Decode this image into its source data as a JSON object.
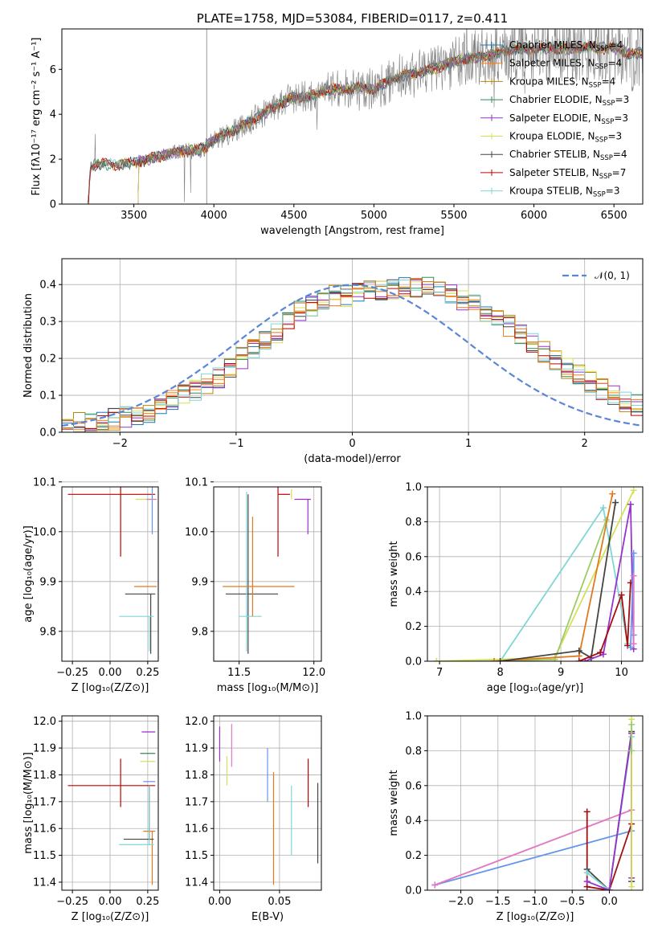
{
  "title": "PLATE=1758, MJD=53084, FIBERID=0117, z=0.411",
  "colors": {
    "chabrier_miles": "#1f77b4",
    "salpeter_miles": "#ff7f0e",
    "kroupa_miles": "#b8860b",
    "chabrier_elodie": "#2e8b57",
    "salpeter_elodie": "#9932cc",
    "kroupa_elodie": "#d4e157",
    "chabrier_stelib": "#444444",
    "salpeter_stelib": "#c00000",
    "kroupa_stelib": "#7fd6d6",
    "data": "#808080",
    "normal": "#5b86d6",
    "pink": "#e377c2",
    "green2": "#9ccc65",
    "blue2": "#6495ed",
    "orange2": "#e07a20",
    "darkred": "#a01010"
  },
  "chart_data": [
    {
      "type": "line",
      "id": "spectrum",
      "title": "PLATE=1758, MJD=53084, FIBERID=0117, z=0.411",
      "xlabel": "wavelength [Angstrom, rest frame]",
      "ylabel": "Flux [fλ10⁻¹⁷ erg cm⁻² s⁻¹ A⁻¹]",
      "xlim": [
        3050,
        6680
      ],
      "ylim": [
        0,
        7.8
      ],
      "xticks": [
        3500,
        4000,
        4500,
        5000,
        5500,
        6000,
        6500
      ],
      "yticks": [
        0,
        2,
        4,
        6
      ],
      "grid": false,
      "legend_position": "top-right",
      "legend": [
        {
          "label": "Chabrier MILES, N",
          "sub": "SSP",
          "suffix": "=4",
          "color_key": "chabrier_miles"
        },
        {
          "label": "Salpeter MILES, N",
          "sub": "SSP",
          "suffix": "=4",
          "color_key": "salpeter_miles"
        },
        {
          "label": "Kroupa MILES, N",
          "sub": "SSP",
          "suffix": "=4",
          "color_key": "kroupa_miles"
        },
        {
          "label": "Chabrier ELODIE, N",
          "sub": "SSP",
          "suffix": "=3",
          "color_key": "chabrier_elodie"
        },
        {
          "label": "Salpeter ELODIE, N",
          "sub": "SSP",
          "suffix": "=3",
          "color_key": "salpeter_elodie"
        },
        {
          "label": "Kroupa ELODIE, N",
          "sub": "SSP",
          "suffix": "=3",
          "color_key": "kroupa_elodie"
        },
        {
          "label": "Chabrier STELIB, N",
          "sub": "SSP",
          "suffix": "=4",
          "color_key": "chabrier_stelib"
        },
        {
          "label": "Salpeter STELIB, N",
          "sub": "SSP",
          "suffix": "=7",
          "color_key": "salpeter_stelib"
        },
        {
          "label": "Kroupa STELIB, N",
          "sub": "SSP",
          "suffix": "=3",
          "color_key": "kroupa_stelib"
        }
      ],
      "continuum": {
        "x": [
          3210,
          3230,
          3300,
          3400,
          3500,
          3600,
          3700,
          3800,
          3900,
          3950,
          4000,
          4100,
          4200,
          4300,
          4400,
          4500,
          4600,
          4700,
          4800,
          4900,
          5000,
          5100,
          5200,
          5300,
          5400,
          5500,
          5600,
          5700,
          5800,
          5900,
          6000,
          6100,
          6200,
          6300,
          6400,
          6500,
          6600,
          6680
        ],
        "y": [
          0,
          1.7,
          1.8,
          1.75,
          1.85,
          2.0,
          2.2,
          2.35,
          2.4,
          2.5,
          2.85,
          3.2,
          3.55,
          4.0,
          4.4,
          4.75,
          4.8,
          5.1,
          5.1,
          5.2,
          5.1,
          5.5,
          5.75,
          5.9,
          6.1,
          6.35,
          6.5,
          6.6,
          6.8,
          6.9,
          6.9,
          6.95,
          6.9,
          7.0,
          6.95,
          6.95,
          6.7,
          6.7
        ]
      }
    },
    {
      "type": "histogram",
      "id": "residuals",
      "xlabel": "(data-model)/error",
      "ylabel": "Normed distribution",
      "xlim": [
        -2.5,
        2.5
      ],
      "ylim": [
        0,
        0.47
      ],
      "xticks": [
        -2,
        -1,
        0,
        1,
        2
      ],
      "yticks": [
        0.0,
        0.1,
        0.2,
        0.3,
        0.4
      ],
      "grid": true,
      "legend_position": "top-right",
      "legend": [
        {
          "label": "𝒩(0, 1)",
          "color_key": "normal",
          "style": "dashed"
        }
      ],
      "bin_edges_start": -2.5,
      "bin_width": 0.1,
      "envelope": [
        0.02,
        0.025,
        0.03,
        0.03,
        0.035,
        0.04,
        0.045,
        0.055,
        0.07,
        0.085,
        0.1,
        0.115,
        0.13,
        0.15,
        0.175,
        0.2,
        0.225,
        0.25,
        0.27,
        0.3,
        0.325,
        0.34,
        0.36,
        0.37,
        0.37,
        0.375,
        0.38,
        0.38,
        0.385,
        0.39,
        0.39,
        0.39,
        0.385,
        0.37,
        0.36,
        0.345,
        0.33,
        0.31,
        0.29,
        0.27,
        0.245,
        0.22,
        0.195,
        0.175,
        0.155,
        0.135,
        0.115,
        0.1,
        0.085,
        0.075,
        0.06,
        0.05,
        0.045,
        0.035,
        0.03,
        0.025
      ],
      "normal_curve": {
        "mu": 0,
        "sigma": 1
      }
    },
    {
      "type": "errorbar",
      "id": "age_vs_Z",
      "xlabel": "Z [log₁₀(Z/Z⊙)]",
      "ylabel": "age  [log₁₀(age/yr)]",
      "xlim": [
        -0.32,
        0.32
      ],
      "ylim": [
        9.74,
        10.09
      ],
      "xticks": [
        -0.25,
        0.0,
        0.25
      ],
      "xticklabels": [
        "−0.25",
        "0.00",
        "0.25"
      ],
      "yticks": [
        9.8,
        9.9,
        10.0,
        10.1
      ],
      "grid": true,
      "points": [
        {
          "x": 0.07,
          "y": 10.075,
          "xerr": [
            0.35,
            0.23
          ],
          "yerr": [
            0.125,
            0.015
          ],
          "color_key": "salpeter_stelib"
        },
        {
          "x": 0.27,
          "y": 10.065,
          "xerr": [
            0.1,
            0.03
          ],
          "yerr": [
            0.0,
            0.0
          ],
          "color_key": "kroupa_elodie"
        },
        {
          "x": 0.28,
          "y": 10.095,
          "xerr": [
            0.08,
            0.02
          ],
          "yerr": [
            0.1,
            0.0
          ],
          "color_key": "blue2"
        },
        {
          "x": 0.29,
          "y": 10.065,
          "xerr": [
            0.05,
            0.02
          ],
          "yerr": [
            0.0,
            0.0
          ],
          "color_key": "pink"
        },
        {
          "x": 0.27,
          "y": 9.875,
          "xerr": [
            0.17,
            0.03
          ],
          "yerr": [
            0.12,
            0.0
          ],
          "color_key": "chabrier_stelib"
        },
        {
          "x": 0.26,
          "y": 9.83,
          "xerr": [
            0.2,
            0.03
          ],
          "yerr": [
            0.07,
            0.0
          ],
          "color_key": "kroupa_stelib"
        },
        {
          "x": 0.28,
          "y": 9.89,
          "xerr": [
            0.12,
            0.03
          ],
          "yerr": [
            0.0,
            0.0
          ],
          "color_key": "orange2"
        }
      ]
    },
    {
      "type": "errorbar",
      "id": "age_vs_mass",
      "xlabel": "mass [log₁₀(M/M⊙)]",
      "ylabel": "",
      "xlim": [
        11.33,
        12.05
      ],
      "ylim": [
        9.74,
        10.09
      ],
      "xticks": [
        11.5,
        12.0
      ],
      "yticks": [
        9.8,
        9.9,
        10.0,
        10.1
      ],
      "grid": true,
      "points": [
        {
          "x": 11.76,
          "y": 10.075,
          "xerr": [
            0.0,
            0.08
          ],
          "yerr": [
            0.125,
            0.015
          ],
          "color_key": "salpeter_stelib"
        },
        {
          "x": 11.85,
          "y": 10.065,
          "xerr": [
            0.0,
            0.0
          ],
          "yerr": [
            0.0,
            0.02
          ],
          "color_key": "kroupa_elodie"
        },
        {
          "x": 11.77,
          "y": 10.095,
          "xerr": [
            0.1,
            0.1
          ],
          "yerr": [
            0.0,
            0.0
          ],
          "color_key": "blue2"
        },
        {
          "x": 11.96,
          "y": 10.065,
          "xerr": [
            0.09,
            0.02
          ],
          "yerr": [
            0.07,
            0.0
          ],
          "color_key": "salpeter_elodie"
        },
        {
          "x": 11.56,
          "y": 9.875,
          "xerr": [
            0.15,
            0.2
          ],
          "yerr": [
            0.12,
            0.2
          ],
          "color_key": "chabrier_stelib"
        },
        {
          "x": 11.55,
          "y": 9.83,
          "xerr": [
            0.05,
            0.1
          ],
          "yerr": [
            0.07,
            0.25
          ],
          "color_key": "kroupa_stelib"
        },
        {
          "x": 11.59,
          "y": 9.89,
          "xerr": [
            0.2,
            0.28
          ],
          "yerr": [
            0.06,
            0.14
          ],
          "color_key": "orange2"
        }
      ]
    },
    {
      "type": "line",
      "id": "weight_vs_age",
      "xlabel": "age  [log₁₀(age/yr)]",
      "ylabel": "mass weight",
      "xlim": [
        6.8,
        10.35
      ],
      "ylim": [
        0,
        1.0
      ],
      "xticks": [
        7,
        8,
        9,
        10
      ],
      "yticks": [
        0.0,
        0.2,
        0.4,
        0.6,
        0.8,
        1.0
      ],
      "grid": true,
      "series": [
        {
          "color_key": "kroupa_stelib",
          "x": [
            6.95,
            8.0,
            9.7,
            10.1
          ],
          "y": [
            0.0,
            0.0,
            0.88,
            0.1
          ]
        },
        {
          "color_key": "kroupa_elodie",
          "x": [
            6.95,
            8.9,
            10.2
          ],
          "y": [
            0.0,
            0.02,
            0.98
          ]
        },
        {
          "color_key": "green2",
          "x": [
            7.9,
            8.9,
            9.75
          ],
          "y": [
            0.0,
            0.01,
            0.81
          ]
        },
        {
          "color_key": "orange2",
          "x": [
            7.9,
            9.3,
            9.85
          ],
          "y": [
            0.0,
            0.03,
            0.96
          ]
        },
        {
          "color_key": "chabrier_stelib",
          "x": [
            8.0,
            9.3,
            9.5,
            9.9
          ],
          "y": [
            0.0,
            0.06,
            0.02,
            0.91
          ]
        },
        {
          "color_key": "salpeter_elodie",
          "x": [
            9.4,
            9.7,
            10.15,
            10.2
          ],
          "y": [
            0.0,
            0.04,
            0.9,
            0.07
          ]
        },
        {
          "color_key": "darkred",
          "x": [
            9.3,
            9.65,
            10.0,
            10.1,
            10.15
          ],
          "y": [
            0.0,
            0.05,
            0.38,
            0.09,
            0.45
          ]
        },
        {
          "color_key": "blue2",
          "x": [
            10.15,
            10.2,
            10.2
          ],
          "y": [
            0.08,
            0.62,
            0.15
          ]
        },
        {
          "color_key": "pink",
          "x": [
            10.2,
            10.2
          ],
          "y": [
            0.1,
            0.49
          ]
        }
      ]
    },
    {
      "type": "errorbar",
      "id": "mass_vs_Z",
      "xlabel": "Z [log₁₀(Z/Z⊙)]",
      "ylabel": "mass [log₁₀(M/M⊙)]",
      "xlim": [
        -0.32,
        0.32
      ],
      "ylim": [
        11.37,
        12.02
      ],
      "xticks": [
        -0.25,
        0.0,
        0.25
      ],
      "xticklabels": [
        "−0.25",
        "0.00",
        "0.25"
      ],
      "yticks": [
        11.4,
        11.5,
        11.6,
        11.7,
        11.8,
        11.9,
        12.0
      ],
      "grid": true,
      "points": [
        {
          "x": 0.07,
          "y": 11.76,
          "xerr": [
            0.35,
            0.23
          ],
          "yerr": [
            0.08,
            0.1
          ],
          "color_key": "salpeter_stelib"
        },
        {
          "x": 0.29,
          "y": 11.96,
          "xerr": [
            0.08,
            0.01
          ],
          "yerr": [
            0.0,
            0.0
          ],
          "color_key": "salpeter_elodie"
        },
        {
          "x": 0.28,
          "y": 11.88,
          "xerr": [
            0.08,
            0.02
          ],
          "yerr": [
            0.0,
            0.0
          ],
          "color_key": "chabrier_elodie"
        },
        {
          "x": 0.28,
          "y": 11.85,
          "xerr": [
            0.08,
            0.02
          ],
          "yerr": [
            0.0,
            0.0
          ],
          "color_key": "kroupa_elodie"
        },
        {
          "x": 0.28,
          "y": 11.775,
          "xerr": [
            0.06,
            0.02
          ],
          "yerr": [
            0.0,
            0.0
          ],
          "color_key": "blue2"
        },
        {
          "x": 0.28,
          "y": 11.59,
          "xerr": [
            0.06,
            0.02
          ],
          "yerr": [
            0.2,
            0.0
          ],
          "color_key": "orange2"
        },
        {
          "x": 0.26,
          "y": 11.56,
          "xerr": [
            0.17,
            0.03
          ],
          "yerr": [
            0.0,
            0.2
          ],
          "color_key": "chabrier_stelib"
        },
        {
          "x": 0.26,
          "y": 11.54,
          "xerr": [
            0.2,
            0.03
          ],
          "yerr": [
            0.0,
            0.22
          ],
          "color_key": "kroupa_stelib"
        }
      ]
    },
    {
      "type": "errorbar",
      "id": "mass_vs_ebv",
      "xlabel": "E(B-V)",
      "ylabel": "",
      "xlim": [
        -0.005,
        0.085
      ],
      "ylim": [
        11.37,
        12.02
      ],
      "xticks": [
        0.0,
        0.05
      ],
      "xticklabels": [
        "0.00",
        "0.05"
      ],
      "yticks": [
        11.4,
        11.5,
        11.6,
        11.7,
        11.8,
        11.9,
        12.0
      ],
      "grid": true,
      "points": [
        {
          "x": 0.0,
          "y": 11.9,
          "xerr": [
            0,
            0
          ],
          "yerr": [
            0.05,
            0.08
          ],
          "color_key": "salpeter_elodie"
        },
        {
          "x": 0.01,
          "y": 11.88,
          "xerr": [
            0,
            0
          ],
          "yerr": [
            0.05,
            0.11
          ],
          "color_key": "pink"
        },
        {
          "x": 0.006,
          "y": 11.82,
          "xerr": [
            0,
            0
          ],
          "yerr": [
            0.06,
            0.05
          ],
          "color_key": "kroupa_elodie"
        },
        {
          "x": 0.04,
          "y": 11.75,
          "xerr": [
            0,
            0
          ],
          "yerr": [
            0.05,
            0.15
          ],
          "color_key": "blue2"
        },
        {
          "x": 0.045,
          "y": 11.6,
          "xerr": [
            0,
            0
          ],
          "yerr": [
            0.21,
            0.21
          ],
          "color_key": "orange2"
        },
        {
          "x": 0.06,
          "y": 11.63,
          "xerr": [
            0,
            0
          ],
          "yerr": [
            0.13,
            0.13
          ],
          "color_key": "kroupa_stelib"
        },
        {
          "x": 0.074,
          "y": 11.77,
          "xerr": [
            0,
            0
          ],
          "yerr": [
            0.09,
            0.09
          ],
          "color_key": "salpeter_stelib"
        },
        {
          "x": 0.082,
          "y": 11.62,
          "xerr": [
            0,
            0
          ],
          "yerr": [
            0.15,
            0.15
          ],
          "color_key": "chabrier_stelib"
        }
      ]
    },
    {
      "type": "line",
      "id": "weight_vs_Z",
      "xlabel": "Z [log₁₀(Z/Z⊙)]",
      "ylabel": "mass weight",
      "xlim": [
        -2.45,
        0.45
      ],
      "ylim": [
        0,
        1.0
      ],
      "xticks": [
        -2.0,
        -1.5,
        -1.0,
        -0.5,
        0.0
      ],
      "xticklabels": [
        "−2.0",
        "−1.5",
        "−1.0",
        "−0.5",
        "0.0"
      ],
      "yticks": [
        0.0,
        0.2,
        0.4,
        0.6,
        0.8,
        1.0
      ],
      "grid": true,
      "series": [
        {
          "color_key": "blue2",
          "x": [
            -2.35,
            0.3
          ],
          "y": [
            0.03,
            0.34
          ]
        },
        {
          "color_key": "pink",
          "x": [
            -2.35,
            0.3
          ],
          "y": [
            0.03,
            0.46
          ]
        },
        {
          "color_key": "darkred",
          "x": [
            -0.3,
            -0.3,
            0.0,
            0.3,
            0.3
          ],
          "y": [
            0.45,
            0.02,
            0.0,
            0.38,
            0.9
          ]
        },
        {
          "color_key": "chabrier_stelib",
          "x": [
            -0.3,
            0.0,
            0.3,
            0.3
          ],
          "y": [
            0.12,
            0.0,
            0.91,
            0.05
          ]
        },
        {
          "color_key": "kroupa_stelib",
          "x": [
            -0.3,
            0.0,
            0.3
          ],
          "y": [
            0.1,
            0.0,
            0.88
          ]
        },
        {
          "color_key": "salpeter_elodie",
          "x": [
            -0.3,
            0.0,
            0.3,
            0.3
          ],
          "y": [
            0.05,
            0.0,
            0.9,
            0.07
          ]
        },
        {
          "color_key": "kroupa_elodie",
          "x": [
            0.3,
            0.3
          ],
          "y": [
            0.02,
            0.98
          ]
        },
        {
          "color_key": "green2",
          "x": [
            0.3,
            0.3
          ],
          "y": [
            0.8,
            0.95
          ]
        }
      ]
    }
  ]
}
